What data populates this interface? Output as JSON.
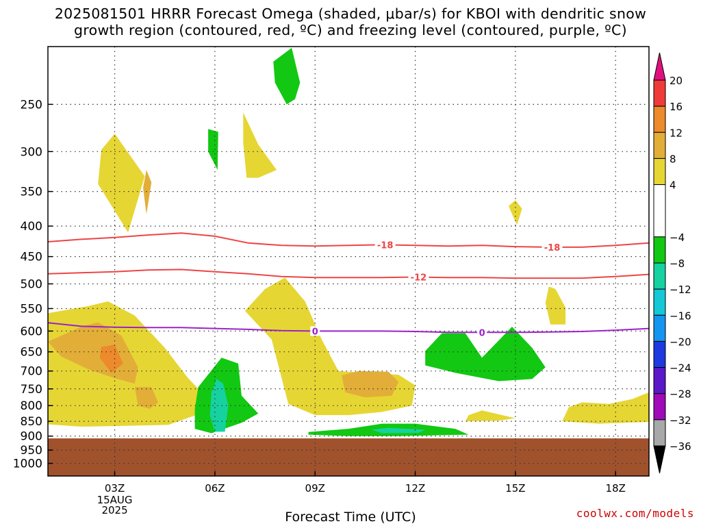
{
  "title_line1": "2025081501 HRRR Forecast Omega (shaded, μbar/s) for KBOI with dendritic snow",
  "title_line2": "growth region (contoured, red, ºC) and freezing level (contoured, purple, ºC)",
  "xlabel": "Forecast Time (UTC)",
  "credit": "coolwx.com/models",
  "chart_data": {
    "type": "heatmap",
    "x_range_hours": [
      1,
      19
    ],
    "x_ticks": [
      {
        "hour": 3,
        "label": "03Z"
      },
      {
        "hour": 6,
        "label": "06Z"
      },
      {
        "hour": 9,
        "label": "09Z"
      },
      {
        "hour": 12,
        "label": "12Z"
      },
      {
        "hour": 15,
        "label": "15Z"
      },
      {
        "hour": 18,
        "label": "18Z"
      }
    ],
    "x_date_label": [
      "15AUG",
      "2025"
    ],
    "y_axis": "pressure (hPa), log scale, inverted",
    "y_range_hpa": [
      200,
      1050
    ],
    "y_ticks": [
      250,
      300,
      350,
      400,
      450,
      500,
      550,
      600,
      650,
      700,
      750,
      800,
      850,
      900,
      950,
      1000
    ],
    "grid": true,
    "ground_level_hpa": 908,
    "ground_color": "#a0522d",
    "colorbar": {
      "levels": [
        20,
        16,
        12,
        8,
        4,
        -4,
        -8,
        -12,
        -16,
        -20,
        -24,
        -28,
        -32,
        -36
      ],
      "bands": [
        {
          "from": 16,
          "to": 20,
          "color": "#f03a3a"
        },
        {
          "from": 12,
          "to": 16,
          "color": "#ec8a2c"
        },
        {
          "from": 8,
          "to": 12,
          "color": "#e2ae38"
        },
        {
          "from": 4,
          "to": 8,
          "color": "#e6d634"
        },
        {
          "from": -4,
          "to": 4,
          "color": "#ffffff"
        },
        {
          "from": -8,
          "to": -4,
          "color": "#12c812"
        },
        {
          "from": -12,
          "to": -8,
          "color": "#16d2a0"
        },
        {
          "from": -16,
          "to": -12,
          "color": "#14c8d6"
        },
        {
          "from": -20,
          "to": -16,
          "color": "#1496f0"
        },
        {
          "from": -24,
          "to": -20,
          "color": "#1c3ae0"
        },
        {
          "from": -28,
          "to": -24,
          "color": "#5a18c8"
        },
        {
          "from": -32,
          "to": -28,
          "color": "#a00ab8"
        },
        {
          "from": -36,
          "to": -32,
          "color": "#a8a8a8"
        }
      ],
      "top_arrow_color": "#e0117f",
      "bottom_arrow_color": "#000000"
    },
    "omega_regions": [
      {
        "value": 4,
        "color": "#e6d634",
        "pts": [
          [
            2.6,
            298
          ],
          [
            3.0,
            280
          ],
          [
            3.9,
            330
          ],
          [
            3.4,
            410
          ],
          [
            2.5,
            340
          ]
        ]
      },
      {
        "value": 8,
        "color": "#e2ae38",
        "pts": [
          [
            3.95,
            322
          ],
          [
            4.1,
            338
          ],
          [
            3.95,
            382
          ],
          [
            3.85,
            345
          ]
        ]
      },
      {
        "value": -4,
        "color": "#12c812",
        "pts": [
          [
            5.8,
            275
          ],
          [
            6.1,
            278
          ],
          [
            6.08,
            322
          ],
          [
            5.8,
            300
          ]
        ]
      },
      {
        "value": 4,
        "color": "#e6d634",
        "pts": [
          [
            6.85,
            258
          ],
          [
            7.3,
            292
          ],
          [
            7.85,
            322
          ],
          [
            7.3,
            332
          ],
          [
            6.95,
            332
          ],
          [
            6.85,
            290
          ]
        ]
      },
      {
        "value": -4,
        "color": "#12c812",
        "pts": [
          [
            7.75,
            212
          ],
          [
            8.3,
            201
          ],
          [
            8.55,
            230
          ],
          [
            8.4,
            245
          ],
          [
            8.15,
            250
          ],
          [
            7.8,
            230
          ]
        ]
      },
      {
        "value": 4,
        "color": "#e6d634",
        "pts": [
          [
            14.8,
            370
          ],
          [
            15.0,
            362
          ],
          [
            15.2,
            374
          ],
          [
            15.05,
            398
          ],
          [
            14.9,
            382
          ]
        ]
      },
      {
        "value": 4,
        "color": "#e6d634",
        "pts": [
          [
            0.7,
            588
          ],
          [
            1.0,
            560
          ],
          [
            2.2,
            545
          ],
          [
            2.8,
            535
          ],
          [
            3.6,
            565
          ],
          [
            4.5,
            640
          ],
          [
            5.2,
            720
          ],
          [
            5.6,
            760
          ],
          [
            5.7,
            820
          ],
          [
            4.6,
            862
          ],
          [
            2.0,
            868
          ],
          [
            0.4,
            855
          ],
          [
            0.4,
            720
          ],
          [
            0.5,
            640
          ]
        ]
      },
      {
        "value": 8,
        "color": "#e2ae38",
        "pts": [
          [
            1.0,
            625
          ],
          [
            2.0,
            590
          ],
          [
            2.5,
            580
          ],
          [
            3.2,
            610
          ],
          [
            3.7,
            690
          ],
          [
            3.6,
            735
          ],
          [
            3.0,
            720
          ],
          [
            2.2,
            695
          ],
          [
            1.4,
            662
          ]
        ]
      },
      {
        "value": 12,
        "color": "#ec8a2c",
        "pts": [
          [
            2.6,
            638
          ],
          [
            3.0,
            632
          ],
          [
            3.25,
            680
          ],
          [
            2.9,
            705
          ],
          [
            2.55,
            665
          ]
        ]
      },
      {
        "value": 8,
        "color": "#e2ae38",
        "pts": [
          [
            3.6,
            745
          ],
          [
            4.1,
            745
          ],
          [
            4.3,
            790
          ],
          [
            4.05,
            810
          ],
          [
            3.7,
            800
          ]
        ]
      },
      {
        "value": -4,
        "color": "#12c812",
        "pts": [
          [
            5.5,
            745
          ],
          [
            6.2,
            665
          ],
          [
            6.7,
            680
          ],
          [
            6.8,
            770
          ],
          [
            7.3,
            825
          ],
          [
            6.8,
            855
          ],
          [
            5.9,
            890
          ],
          [
            5.4,
            875
          ],
          [
            5.4,
            810
          ]
        ]
      },
      {
        "value": -8,
        "color": "#16d2a0",
        "pts": [
          [
            5.9,
            760
          ],
          [
            6.05,
            722
          ],
          [
            6.25,
            735
          ],
          [
            6.4,
            800
          ],
          [
            6.3,
            885
          ],
          [
            6.0,
            885
          ],
          [
            5.85,
            830
          ]
        ]
      },
      {
        "value": 4,
        "color": "#e6d634",
        "pts": [
          [
            6.9,
            555
          ],
          [
            7.5,
            510
          ],
          [
            8.1,
            488
          ],
          [
            8.7,
            535
          ],
          [
            9.2,
            620
          ],
          [
            9.7,
            700
          ],
          [
            10.5,
            705
          ],
          [
            11.5,
            710
          ],
          [
            12.0,
            740
          ],
          [
            11.9,
            800
          ],
          [
            11.0,
            820
          ],
          [
            10.0,
            830
          ],
          [
            9.0,
            830
          ],
          [
            8.2,
            795
          ],
          [
            7.7,
            620
          ]
        ]
      },
      {
        "value": 8,
        "color": "#e2ae38",
        "pts": [
          [
            9.8,
            712
          ],
          [
            10.3,
            700
          ],
          [
            11.2,
            702
          ],
          [
            11.5,
            730
          ],
          [
            11.3,
            770
          ],
          [
            10.5,
            775
          ],
          [
            9.9,
            760
          ]
        ]
      },
      {
        "value": -4,
        "color": "#12c812",
        "pts": [
          [
            8.8,
            886
          ],
          [
            10.0,
            875
          ],
          [
            11.0,
            858
          ],
          [
            12.0,
            858
          ],
          [
            13.2,
            875
          ],
          [
            13.6,
            895
          ],
          [
            11.5,
            900
          ],
          [
            10.0,
            900
          ],
          [
            8.8,
            895
          ]
        ]
      },
      {
        "value": -8,
        "color": "#16d2a0",
        "pts": [
          [
            10.7,
            878
          ],
          [
            11.2,
            872
          ],
          [
            12.3,
            878
          ],
          [
            12.1,
            889
          ],
          [
            11.0,
            890
          ]
        ]
      },
      {
        "value": -4,
        "color": "#12c812",
        "pts": [
          [
            12.3,
            648
          ],
          [
            12.8,
            605
          ],
          [
            13.5,
            605
          ],
          [
            14.0,
            665
          ],
          [
            14.9,
            590
          ],
          [
            15.5,
            640
          ],
          [
            15.9,
            690
          ],
          [
            15.5,
            722
          ],
          [
            14.5,
            728
          ],
          [
            13.2,
            705
          ],
          [
            12.3,
            685
          ]
        ]
      },
      {
        "value": 4,
        "color": "#e6d634",
        "pts": [
          [
            13.5,
            850
          ],
          [
            13.6,
            830
          ],
          [
            14.0,
            815
          ],
          [
            15.0,
            840
          ],
          [
            14.5,
            848
          ]
        ]
      },
      {
        "value": 4,
        "color": "#e6d634",
        "pts": [
          [
            15.9,
            538
          ],
          [
            16.0,
            505
          ],
          [
            16.2,
            510
          ],
          [
            16.5,
            548
          ],
          [
            16.5,
            585
          ],
          [
            16.05,
            585
          ]
        ]
      },
      {
        "value": 4,
        "color": "#e6d634",
        "pts": [
          [
            16.4,
            850
          ],
          [
            16.6,
            805
          ],
          [
            17.0,
            790
          ],
          [
            17.8,
            795
          ],
          [
            18.5,
            780
          ],
          [
            19.0,
            760
          ],
          [
            19.0,
            852
          ],
          [
            17.5,
            858
          ]
        ]
      }
    ],
    "contours": [
      {
        "label": "-18",
        "color": "#ee4444",
        "kind": "dendritic",
        "pts": [
          [
            1,
            425
          ],
          [
            2,
            421
          ],
          [
            3,
            418
          ],
          [
            4,
            414
          ],
          [
            5,
            411
          ],
          [
            6,
            416
          ],
          [
            7,
            427
          ],
          [
            8,
            431
          ],
          [
            9,
            432
          ],
          [
            10,
            431
          ],
          [
            11,
            430
          ],
          [
            12,
            431
          ],
          [
            13,
            432
          ],
          [
            14,
            431
          ],
          [
            15,
            433
          ],
          [
            16,
            434
          ],
          [
            17,
            434
          ],
          [
            18,
            431
          ],
          [
            19,
            427
          ]
        ],
        "label_hours": [
          11.1,
          16.1
        ]
      },
      {
        "label": "-12",
        "color": "#ee4444",
        "kind": "dendritic",
        "pts": [
          [
            1,
            481
          ],
          [
            2,
            479
          ],
          [
            3,
            477
          ],
          [
            4,
            474
          ],
          [
            5,
            473
          ],
          [
            6,
            477
          ],
          [
            7,
            481
          ],
          [
            8,
            486
          ],
          [
            9,
            488
          ],
          [
            10,
            488
          ],
          [
            11,
            488
          ],
          [
            12,
            487
          ],
          [
            13,
            488
          ],
          [
            14,
            488
          ],
          [
            15,
            489
          ],
          [
            16,
            489
          ],
          [
            17,
            489
          ],
          [
            18,
            486
          ],
          [
            19,
            482
          ]
        ],
        "label_hours": [
          12.1
        ]
      },
      {
        "label": "0",
        "color": "#9b22c8",
        "kind": "freezing",
        "pts": [
          [
            1,
            581
          ],
          [
            2,
            589
          ],
          [
            3,
            591
          ],
          [
            4,
            592
          ],
          [
            5,
            592
          ],
          [
            6,
            594
          ],
          [
            7,
            596
          ],
          [
            8,
            599
          ],
          [
            9,
            600
          ],
          [
            10,
            600
          ],
          [
            11,
            600
          ],
          [
            12,
            601
          ],
          [
            13,
            603
          ],
          [
            14,
            603
          ],
          [
            15,
            603
          ],
          [
            16,
            602
          ],
          [
            17,
            601
          ],
          [
            18,
            598
          ],
          [
            19,
            594
          ]
        ],
        "label_hours": [
          9.0,
          14.0
        ]
      }
    ]
  }
}
